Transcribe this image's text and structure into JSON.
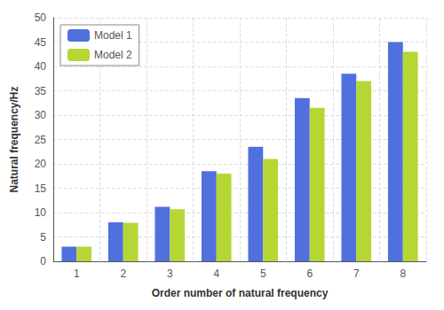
{
  "chart_data": {
    "type": "bar",
    "xlabel": "Order number of natural frequency",
    "ylabel": "Natural frequency/Hz",
    "categories": [
      1,
      2,
      3,
      4,
      5,
      6,
      7,
      8
    ],
    "series": [
      {
        "name": "Model 1",
        "values": [
          3.0,
          8.0,
          11.2,
          18.5,
          23.5,
          33.5,
          38.5,
          45.0
        ]
      },
      {
        "name": "Model 2",
        "values": [
          3.0,
          7.9,
          10.7,
          18.0,
          21.0,
          31.5,
          37.0,
          43.0
        ]
      }
    ],
    "ylim": [
      0,
      50
    ],
    "yticks": [
      0,
      5,
      10,
      15,
      20,
      25,
      30,
      35,
      40,
      45,
      50
    ],
    "grid": true,
    "legend": "upper left"
  }
}
